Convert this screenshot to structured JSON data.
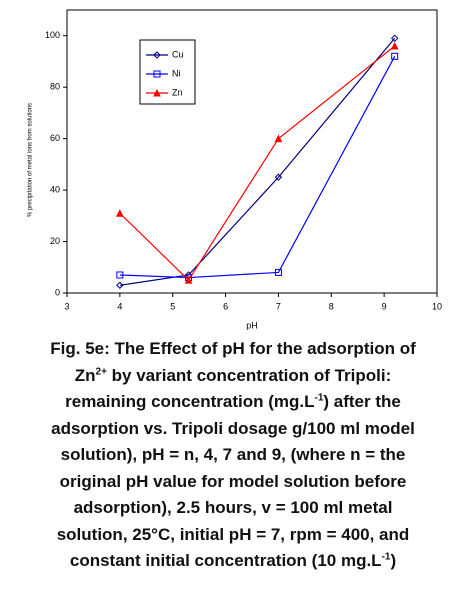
{
  "chart_data": {
    "type": "line",
    "x_label": "pH",
    "y_label": "% precipitation of metal ions from solutions",
    "x": [
      4,
      5.3,
      7,
      9.2
    ],
    "series": [
      {
        "name": "Cu",
        "color": "#000080",
        "marker": "diamond",
        "values": [
          3,
          7,
          45,
          99
        ]
      },
      {
        "name": "Ni",
        "color": "#0000ff",
        "marker": "square",
        "values": [
          7,
          6,
          8,
          92
        ]
      },
      {
        "name": "Zn",
        "color": "#ff0000",
        "marker": "triangle",
        "values": [
          31,
          5,
          60,
          96
        ]
      }
    ],
    "xlim": [
      3,
      10
    ],
    "xticks": [
      3,
      4,
      5,
      6,
      7,
      8,
      9,
      10
    ],
    "ylim": [
      0,
      110
    ],
    "yticks": [
      0,
      20,
      40,
      60,
      80,
      100
    ],
    "grid": false
  },
  "caption": [
    [
      {
        "text": "Fig. 5e: The Effect of pH for the adsorption of"
      }
    ],
    [
      {
        "text": "Zn"
      },
      {
        "text": "2+",
        "sup": true
      },
      {
        "text": " by variant concentration of Tripoli:"
      }
    ],
    [
      {
        "text": "remaining concentration (mg.L"
      },
      {
        "text": "-1",
        "sup": true
      },
      {
        "text": ") after the"
      }
    ],
    [
      {
        "text": "adsorption vs. Tripoli dosage g/100 ml model"
      }
    ],
    [
      {
        "text": "solution), pH = n, 4, 7 and 9,  (where n = the"
      }
    ],
    [
      {
        "text": "original pH value for model solution before"
      }
    ],
    [
      {
        "text": "adsorption), 2.5 hours, v = 100 ml metal"
      }
    ],
    [
      {
        "text": "solution, 25°C, initial pH = 7, rpm = 400, and"
      }
    ],
    [
      {
        "text": "constant initial concentration (10 mg.L"
      },
      {
        "text": "-1",
        "sup": true
      },
      {
        "text": ")"
      }
    ]
  ]
}
